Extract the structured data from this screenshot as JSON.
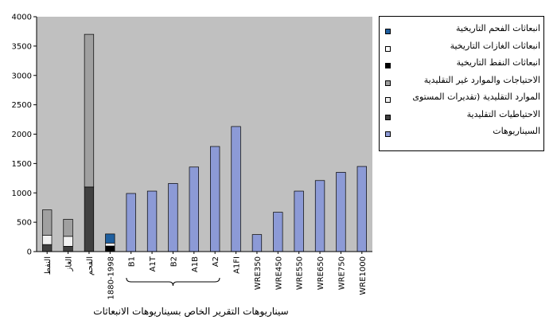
{
  "chart_data": {
    "type": "bar",
    "stacked_bars": [
      {
        "label": "النفط",
        "segments": [
          {
            "series": "الاحتياطيات التقليدية",
            "value": 120
          },
          {
            "series": "الموارد التقليدية (تقديرات المستوى",
            "value": 160
          },
          {
            "series": "الاحتياجات والموارد غير التقليدية",
            "value": 430
          }
        ]
      },
      {
        "label": "الغاز",
        "segments": [
          {
            "series": "الاحتياطيات التقليدية",
            "value": 90
          },
          {
            "series": "الموارد التقليدية (تقديرات المستوى",
            "value": 170
          },
          {
            "series": "الاحتياجات والموارد غير التقليدية",
            "value": 290
          }
        ]
      },
      {
        "label": "الفحم",
        "segments": [
          {
            "series": "الاحتياطيات التقليدية",
            "value": 1100
          },
          {
            "series": "الاحتياجات والموارد غير التقليدية",
            "value": 2600
          }
        ]
      },
      {
        "label": "1880-1998",
        "segments": [
          {
            "series": "انبعاثات النفط التاريخية",
            "value": 95
          },
          {
            "series": "انبعاثات الغازات التاريخية",
            "value": 50
          },
          {
            "series": "انبعاثات الفحم التاريخية",
            "value": 155
          }
        ]
      }
    ],
    "scenario_bars": {
      "series": "السيناريوهات",
      "categories": [
        "B1",
        "A1T",
        "B2",
        "A1B",
        "A2",
        "A1FI",
        "WRE350",
        "WRE450",
        "WRE550",
        "WRE650",
        "WRE750",
        "WRE1000"
      ],
      "values": [
        990,
        1030,
        1160,
        1440,
        1790,
        2130,
        290,
        670,
        1030,
        1210,
        1350,
        1450
      ]
    },
    "y_ticks": [
      0,
      500,
      1000,
      1500,
      2000,
      2500,
      3000,
      3500,
      4000
    ],
    "ylim": [
      0,
      4000
    ],
    "legend": {
      "placement": "right",
      "entries": [
        {
          "label": "انبعاثات الفحم التاريخية",
          "color": "#1f5f9f"
        },
        {
          "label": "انبعاثات الغازات التاريخية",
          "color": "#ffffff"
        },
        {
          "label": "انبعاثات النفط التاريخية",
          "color": "#000000"
        },
        {
          "label": "الاحتياجات والموارد غير التقليدية",
          "color": "#a0a0a0"
        },
        {
          "label": "الموارد التقليدية (تقديرات المستوى",
          "color": "#f2f2f2"
        },
        {
          "label": "الاحتياطيات التقليدية",
          "color": "#404040"
        },
        {
          "label": "السيناريوهات",
          "color": "#8c9ad6"
        }
      ]
    },
    "xlabel": "سيناريوهات التقرير الخاص بسيناريوهات الانبعاثات",
    "grid": false,
    "plot_background": "#c0c0c0"
  }
}
